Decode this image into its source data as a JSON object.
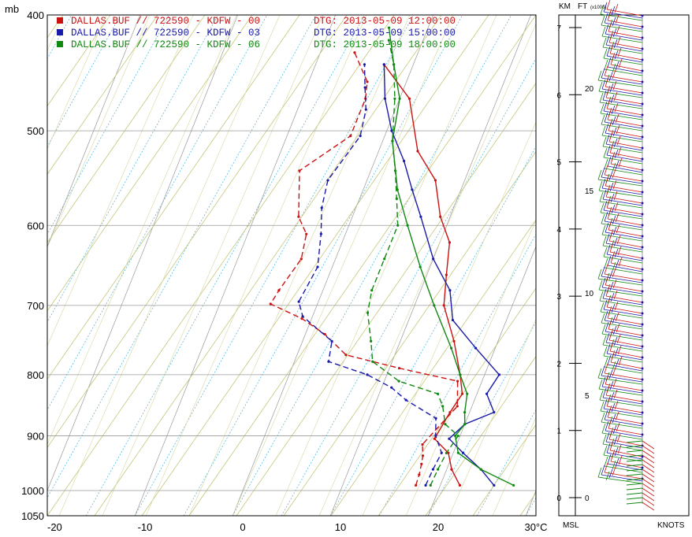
{
  "chart_data": {
    "type": "line",
    "ylabel": "mb",
    "pressure_ticks": [
      400,
      500,
      600,
      700,
      800,
      900,
      1000,
      1050
    ],
    "temp_ticks": [
      "-20",
      "-10",
      "0",
      "10",
      "20",
      "30°C"
    ],
    "temp_tick_values": [
      -20,
      -10,
      0,
      10,
      20,
      30
    ],
    "xlim": [
      -20,
      30
    ],
    "ylim": [
      400,
      1050
    ],
    "height_axis": {
      "km_label": "KM",
      "ft_label": "FT",
      "ft_unit": "(x1000)",
      "bottom_left_label": "MSL",
      "bottom_right_label": "KNOTS",
      "km_ticks": [
        0,
        1,
        2,
        3,
        4,
        5,
        6,
        7
      ],
      "ft_ticks": [
        0,
        5,
        10,
        15,
        20
      ]
    },
    "series": [
      {
        "name": "DALLAS.BUF // 722590 - KDFW - 00",
        "dtg": "DTG: 2013-05-09 12:00:00",
        "color": "#cc1111",
        "temperature": [
          [
            22,
            990
          ],
          [
            20.5,
            960
          ],
          [
            19.5,
            930
          ],
          [
            17.5,
            905
          ],
          [
            18,
            860
          ],
          [
            18.5,
            830
          ],
          [
            17.5,
            800
          ],
          [
            15.5,
            750
          ],
          [
            13,
            700
          ],
          [
            12,
            660
          ],
          [
            11,
            620
          ],
          [
            9,
            590
          ],
          [
            7,
            550
          ],
          [
            4,
            520
          ],
          [
            1,
            470
          ],
          [
            -3,
            440
          ]
        ],
        "dewpoint": [
          [
            17.5,
            990
          ],
          [
            17.4,
            970
          ],
          [
            17.2,
            950
          ],
          [
            17.0,
            935
          ],
          [
            16.5,
            915
          ],
          [
            18.5,
            850
          ],
          [
            17.5,
            810
          ],
          [
            11,
            790
          ],
          [
            5,
            770
          ],
          [
            2,
            740
          ],
          [
            -1,
            718
          ],
          [
            -4.8,
            698
          ],
          [
            -4.5,
            680
          ],
          [
            -3.5,
            640
          ],
          [
            -4,
            610
          ],
          [
            -5.5,
            590
          ],
          [
            -7.3,
            540
          ],
          [
            -3.5,
            505
          ],
          [
            -3.5,
            470
          ],
          [
            -4,
            455
          ],
          [
            -6.5,
            430
          ]
        ]
      },
      {
        "name": "DALLAS.BUF // 722590 - KDFW - 03",
        "dtg": "DTG: 2013-05-09 15:00:00",
        "color": "#1a1aaa",
        "temperature": [
          [
            25.5,
            990
          ],
          [
            23.5,
            960
          ],
          [
            21,
            930
          ],
          [
            19,
            905
          ],
          [
            20,
            880
          ],
          [
            22.5,
            860
          ],
          [
            21,
            830
          ],
          [
            21.5,
            800
          ],
          [
            18,
            760
          ],
          [
            14.5,
            720
          ],
          [
            13,
            680
          ],
          [
            10,
            640
          ],
          [
            7,
            590
          ],
          [
            5,
            560
          ],
          [
            3,
            530
          ],
          [
            0.5,
            500
          ],
          [
            -1.5,
            470
          ],
          [
            -3,
            440
          ]
        ],
        "dewpoint": [
          [
            18.5,
            990
          ],
          [
            18.6,
            960
          ],
          [
            18.8,
            930
          ],
          [
            17.5,
            900
          ],
          [
            16.8,
            870
          ],
          [
            13,
            840
          ],
          [
            11,
            820
          ],
          [
            8,
            800
          ],
          [
            3.5,
            780
          ],
          [
            3,
            750
          ],
          [
            -1,
            715
          ],
          [
            -2,
            695
          ],
          [
            -1.5,
            650
          ],
          [
            -2.5,
            610
          ],
          [
            -3.5,
            580
          ],
          [
            -4,
            550
          ],
          [
            -2.5,
            505
          ],
          [
            -3,
            480
          ],
          [
            -4,
            460
          ],
          [
            -5,
            440
          ]
        ]
      },
      {
        "name": "DALLAS.BUF // 722590 - KDFW - 06",
        "dtg": "DTG: 2013-05-09 18:00:00",
        "color": "#118811",
        "temperature": [
          [
            27.5,
            990
          ],
          [
            23.5,
            960
          ],
          [
            20.5,
            930
          ],
          [
            19.5,
            900
          ],
          [
            20,
            880
          ],
          [
            19.5,
            860
          ],
          [
            19,
            830
          ],
          [
            17.5,
            800
          ],
          [
            15.5,
            760
          ],
          [
            12,
            700
          ],
          [
            9,
            650
          ],
          [
            6,
            600
          ],
          [
            3.5,
            560
          ],
          [
            1,
            510
          ],
          [
            0,
            470
          ],
          [
            -2,
            440
          ],
          [
            -4,
            410
          ]
        ],
        "dewpoint": [
          [
            19,
            990
          ],
          [
            19.1,
            960
          ],
          [
            19.3,
            930
          ],
          [
            19.8,
            900
          ],
          [
            18,
            880
          ],
          [
            17,
            850
          ],
          [
            16,
            830
          ],
          [
            11.5,
            810
          ],
          [
            8,
            780
          ],
          [
            7,
            750
          ],
          [
            5.5,
            710
          ],
          [
            5,
            680
          ],
          [
            5,
            640
          ],
          [
            5,
            600
          ],
          [
            3.8,
            570
          ],
          [
            2.5,
            540
          ],
          [
            1,
            510
          ],
          [
            -0.5,
            470
          ],
          [
            -2,
            440
          ],
          [
            -3.5,
            420
          ]
        ]
      }
    ]
  }
}
